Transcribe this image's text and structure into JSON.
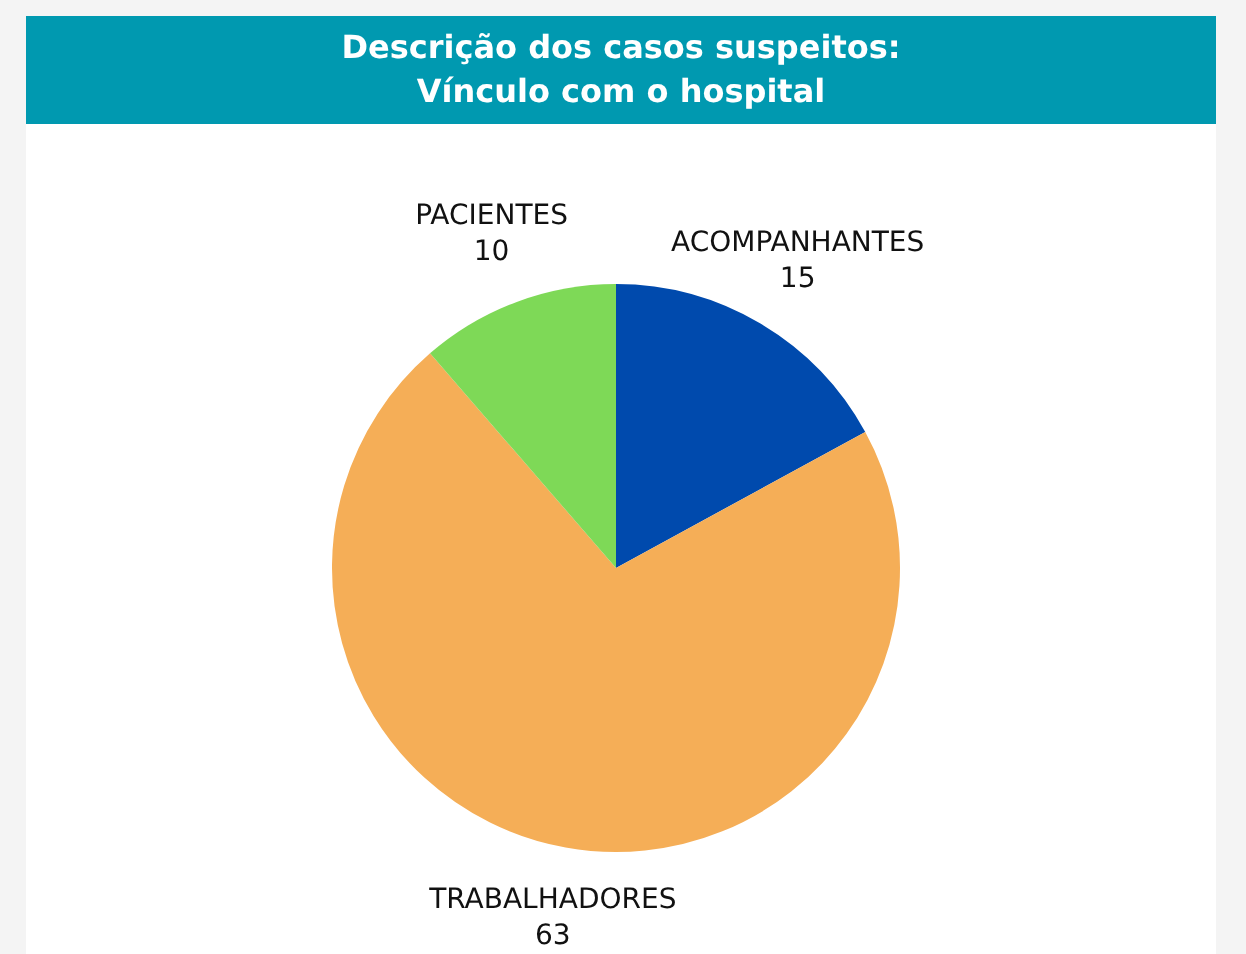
{
  "chart_data": {
    "type": "pie",
    "title": "Descrição dos casos suspeitos:\nVínculo com o hospital",
    "categories": [
      "ACOMPANHANTES",
      "TRABALHADORES",
      "PACIENTES"
    ],
    "values": [
      15,
      63,
      10
    ],
    "colors": [
      "#004aad",
      "#f5ae57",
      "#7ed957"
    ],
    "data_labels": true
  }
}
